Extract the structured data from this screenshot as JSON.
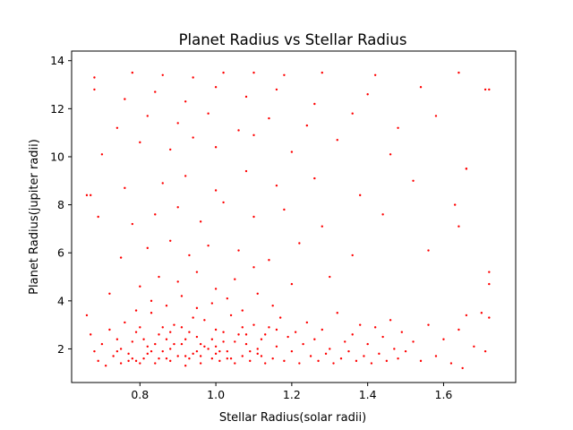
{
  "chart_data": {
    "type": "scatter",
    "title": "Planet Radius vs Stellar Radius",
    "xlabel": "Stellar Radius(solar radii)",
    "ylabel": "Planet Radius(jupiter radii)",
    "xlim": [
      0.62,
      1.79
    ],
    "ylim": [
      0.6,
      14.4
    ],
    "xticks": [
      "0.8",
      "1.0",
      "1.2",
      "1.4",
      "1.6"
    ],
    "xtick_values": [
      0.8,
      1.0,
      1.2,
      1.4,
      1.6
    ],
    "yticks": [
      "2",
      "4",
      "6",
      "8",
      "10",
      "12",
      "14"
    ],
    "ytick_values": [
      2,
      4,
      6,
      8,
      10,
      12,
      14
    ],
    "grid": false,
    "legend": "none",
    "marker_color": "#ff0000",
    "series": [
      {
        "points": [
          [
            0.66,
            3.4
          ],
          [
            0.67,
            2.6
          ],
          [
            0.68,
            1.9
          ],
          [
            0.69,
            1.5
          ],
          [
            0.7,
            2.2
          ],
          [
            0.71,
            1.3
          ],
          [
            0.72,
            2.8
          ],
          [
            0.73,
            1.7
          ],
          [
            0.74,
            2.4
          ],
          [
            0.75,
            1.4
          ],
          [
            0.76,
            3.1
          ],
          [
            0.77,
            1.8
          ],
          [
            0.78,
            2.3
          ],
          [
            0.79,
            1.5
          ],
          [
            0.8,
            2.9
          ],
          [
            0.81,
            1.6
          ],
          [
            0.82,
            2.1
          ],
          [
            0.83,
            3.5
          ],
          [
            0.84,
            1.4
          ],
          [
            0.85,
            2.6
          ],
          [
            0.86,
            1.9
          ],
          [
            0.87,
            2.4
          ],
          [
            0.88,
            1.5
          ],
          [
            0.89,
            3.0
          ],
          [
            0.9,
            1.7
          ],
          [
            0.91,
            2.2
          ],
          [
            0.92,
            1.3
          ],
          [
            0.93,
            2.7
          ],
          [
            0.94,
            1.8
          ],
          [
            0.95,
            2.5
          ],
          [
            0.96,
            1.4
          ],
          [
            0.97,
            3.2
          ],
          [
            0.98,
            2.0
          ],
          [
            0.99,
            1.6
          ],
          [
            1.0,
            2.8
          ],
          [
            1.01,
            1.5
          ],
          [
            1.02,
            2.3
          ],
          [
            1.03,
            1.9
          ],
          [
            1.04,
            3.4
          ],
          [
            1.05,
            1.4
          ],
          [
            1.06,
            2.6
          ],
          [
            1.07,
            1.7
          ],
          [
            1.08,
            2.2
          ],
          [
            1.09,
            1.5
          ],
          [
            1.1,
            3.0
          ],
          [
            1.11,
            1.8
          ],
          [
            1.12,
            2.4
          ],
          [
            1.13,
            1.4
          ],
          [
            1.14,
            2.9
          ],
          [
            1.15,
            1.6
          ],
          [
            1.16,
            2.1
          ],
          [
            1.17,
            3.3
          ],
          [
            1.18,
            1.5
          ],
          [
            1.19,
            2.5
          ],
          [
            1.2,
            1.9
          ],
          [
            1.21,
            2.7
          ],
          [
            1.22,
            1.4
          ],
          [
            1.23,
            2.2
          ],
          [
            1.24,
            3.1
          ],
          [
            1.25,
            1.7
          ],
          [
            1.26,
            2.4
          ],
          [
            1.27,
            1.5
          ],
          [
            1.28,
            2.8
          ],
          [
            1.29,
            1.8
          ],
          [
            1.3,
            2.0
          ],
          [
            1.31,
            1.4
          ],
          [
            1.32,
            3.5
          ],
          [
            1.33,
            1.6
          ],
          [
            1.34,
            2.3
          ],
          [
            1.35,
            1.9
          ],
          [
            1.36,
            2.6
          ],
          [
            1.37,
            1.5
          ],
          [
            1.38,
            3.0
          ],
          [
            1.39,
            1.7
          ],
          [
            1.4,
            2.2
          ],
          [
            1.41,
            1.4
          ],
          [
            1.42,
            2.9
          ],
          [
            1.43,
            1.8
          ],
          [
            1.44,
            2.5
          ],
          [
            1.45,
            1.5
          ],
          [
            1.46,
            3.2
          ],
          [
            1.47,
            2.0
          ],
          [
            1.48,
            1.6
          ],
          [
            1.49,
            2.7
          ],
          [
            1.5,
            1.9
          ],
          [
            1.52,
            2.3
          ],
          [
            1.54,
            1.5
          ],
          [
            1.56,
            3.0
          ],
          [
            1.58,
            1.7
          ],
          [
            1.6,
            2.4
          ],
          [
            1.62,
            1.4
          ],
          [
            1.64,
            2.8
          ],
          [
            1.66,
            3.4
          ],
          [
            1.68,
            2.1
          ],
          [
            1.7,
            3.5
          ],
          [
            1.72,
            3.3
          ],
          [
            0.74,
            1.9
          ],
          [
            0.78,
            1.6
          ],
          [
            0.82,
            1.8
          ],
          [
            0.86,
            2.9
          ],
          [
            0.88,
            2.0
          ],
          [
            0.92,
            1.7
          ],
          [
            0.94,
            3.3
          ],
          [
            0.96,
            2.2
          ],
          [
            1.0,
            1.8
          ],
          [
            1.02,
            2.7
          ],
          [
            0.75,
            2.0
          ],
          [
            0.79,
            2.7
          ],
          [
            0.83,
            1.9
          ],
          [
            0.87,
            1.6
          ],
          [
            0.91,
            2.9
          ],
          [
            0.95,
            1.9
          ],
          [
            0.99,
            2.4
          ],
          [
            1.03,
            1.6
          ],
          [
            1.07,
            2.9
          ],
          [
            1.11,
            2.0
          ],
          [
            0.77,
            1.5
          ],
          [
            0.81,
            2.4
          ],
          [
            0.85,
            1.6
          ],
          [
            0.89,
            2.2
          ],
          [
            0.93,
            1.6
          ],
          [
            0.97,
            2.1
          ],
          [
            1.01,
            1.9
          ],
          [
            1.05,
            2.3
          ],
          [
            1.09,
            1.9
          ],
          [
            1.13,
            2.6
          ],
          [
            0.8,
            1.4
          ],
          [
            0.84,
            2.2
          ],
          [
            0.88,
            2.7
          ],
          [
            0.92,
            2.4
          ],
          [
            0.96,
            1.7
          ],
          [
            1.0,
            2.1
          ],
          [
            1.04,
            1.6
          ],
          [
            1.08,
            2.6
          ],
          [
            1.12,
            1.7
          ],
          [
            1.16,
            2.8
          ],
          [
            0.79,
            3.6
          ],
          [
            0.83,
            4.0
          ],
          [
            0.87,
            3.8
          ],
          [
            0.91,
            4.2
          ],
          [
            0.95,
            3.7
          ],
          [
            0.99,
            3.9
          ],
          [
            1.03,
            4.1
          ],
          [
            1.07,
            3.6
          ],
          [
            1.11,
            4.3
          ],
          [
            1.15,
            3.8
          ],
          [
            0.72,
            4.3
          ],
          [
            0.8,
            4.6
          ],
          [
            0.85,
            5.0
          ],
          [
            0.9,
            4.8
          ],
          [
            0.95,
            5.2
          ],
          [
            1.0,
            4.5
          ],
          [
            1.05,
            4.9
          ],
          [
            1.1,
            5.4
          ],
          [
            1.2,
            4.7
          ],
          [
            1.3,
            5.0
          ],
          [
            0.75,
            5.8
          ],
          [
            0.82,
            6.2
          ],
          [
            0.88,
            6.5
          ],
          [
            0.93,
            5.9
          ],
          [
            0.98,
            6.3
          ],
          [
            1.06,
            6.1
          ],
          [
            1.14,
            5.7
          ],
          [
            1.22,
            6.4
          ],
          [
            1.36,
            5.9
          ],
          [
            1.56,
            6.1
          ],
          [
            0.78,
            7.2
          ],
          [
            0.84,
            7.6
          ],
          [
            0.9,
            7.9
          ],
          [
            0.96,
            7.3
          ],
          [
            1.02,
            8.1
          ],
          [
            1.1,
            7.5
          ],
          [
            1.18,
            7.8
          ],
          [
            1.28,
            7.1
          ],
          [
            1.44,
            7.6
          ],
          [
            1.64,
            7.1
          ],
          [
            0.66,
            8.4
          ],
          [
            0.76,
            8.7
          ],
          [
            0.86,
            8.9
          ],
          [
            0.92,
            9.2
          ],
          [
            1.0,
            8.6
          ],
          [
            1.08,
            9.4
          ],
          [
            1.16,
            8.8
          ],
          [
            1.26,
            9.1
          ],
          [
            1.38,
            8.4
          ],
          [
            1.52,
            9.0
          ],
          [
            0.7,
            10.1
          ],
          [
            0.8,
            10.6
          ],
          [
            0.88,
            10.3
          ],
          [
            0.94,
            10.8
          ],
          [
            1.0,
            10.4
          ],
          [
            1.1,
            10.9
          ],
          [
            1.2,
            10.2
          ],
          [
            1.32,
            10.7
          ],
          [
            1.46,
            10.1
          ],
          [
            1.66,
            9.5
          ],
          [
            0.74,
            11.2
          ],
          [
            0.82,
            11.7
          ],
          [
            0.9,
            11.4
          ],
          [
            0.98,
            11.8
          ],
          [
            1.06,
            11.1
          ],
          [
            1.14,
            11.6
          ],
          [
            1.24,
            11.3
          ],
          [
            1.36,
            11.8
          ],
          [
            1.48,
            11.2
          ],
          [
            1.58,
            11.7
          ],
          [
            0.68,
            12.8
          ],
          [
            0.76,
            12.4
          ],
          [
            0.84,
            12.7
          ],
          [
            0.92,
            12.3
          ],
          [
            1.0,
            12.9
          ],
          [
            1.08,
            12.5
          ],
          [
            1.16,
            12.8
          ],
          [
            1.26,
            12.2
          ],
          [
            1.4,
            12.6
          ],
          [
            1.54,
            12.9
          ],
          [
            0.68,
            13.3
          ],
          [
            0.78,
            13.5
          ],
          [
            0.86,
            13.4
          ],
          [
            0.94,
            13.3
          ],
          [
            1.02,
            13.5
          ],
          [
            1.1,
            13.5
          ],
          [
            1.18,
            13.4
          ],
          [
            1.28,
            13.5
          ],
          [
            1.42,
            13.4
          ],
          [
            1.64,
            13.5
          ],
          [
            1.71,
            12.8
          ],
          [
            1.72,
            12.8
          ],
          [
            1.72,
            5.2
          ],
          [
            1.72,
            4.7
          ],
          [
            1.71,
            1.9
          ],
          [
            1.65,
            1.2
          ],
          [
            1.66,
            9.5
          ],
          [
            1.63,
            8.0
          ],
          [
            0.69,
            7.5
          ],
          [
            0.67,
            8.4
          ]
        ]
      }
    ]
  }
}
